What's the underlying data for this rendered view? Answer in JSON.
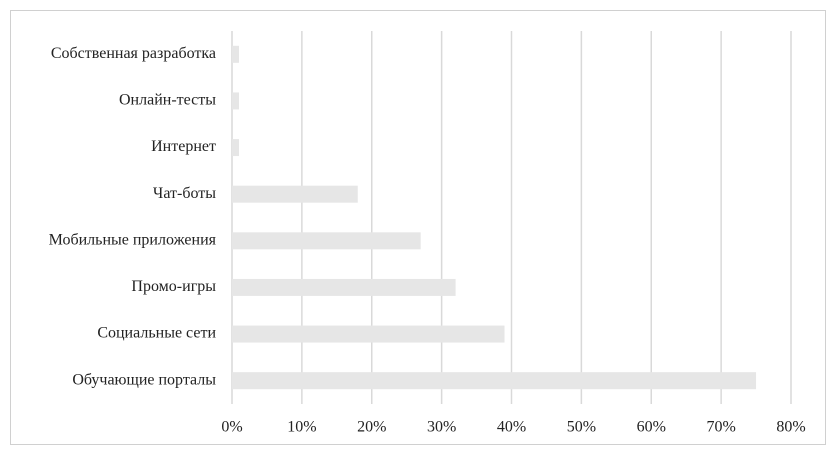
{
  "chart_data": {
    "type": "bar",
    "orientation": "horizontal",
    "categories": [
      "Собственная разработка",
      "Онлайн-тесты",
      "Интернет",
      "Чат-боты",
      "Мобильные приложения",
      "Промо-игры",
      "Социальные сети",
      "Обучающие порталы"
    ],
    "values": [
      1,
      1,
      1,
      18,
      27,
      32,
      39,
      75
    ],
    "color": "#e6e6e6",
    "xlim": [
      0,
      80
    ],
    "xticks": [
      {
        "value": 0,
        "label": "0%"
      },
      {
        "value": 10,
        "label": "10%"
      },
      {
        "value": 20,
        "label": "20%"
      },
      {
        "value": 30,
        "label": "30%"
      },
      {
        "value": 40,
        "label": "40%"
      },
      {
        "value": 50,
        "label": "50%"
      },
      {
        "value": 60,
        "label": "60%"
      },
      {
        "value": 70,
        "label": "70%"
      },
      {
        "value": 80,
        "label": "80%"
      }
    ],
    "grid": true
  }
}
